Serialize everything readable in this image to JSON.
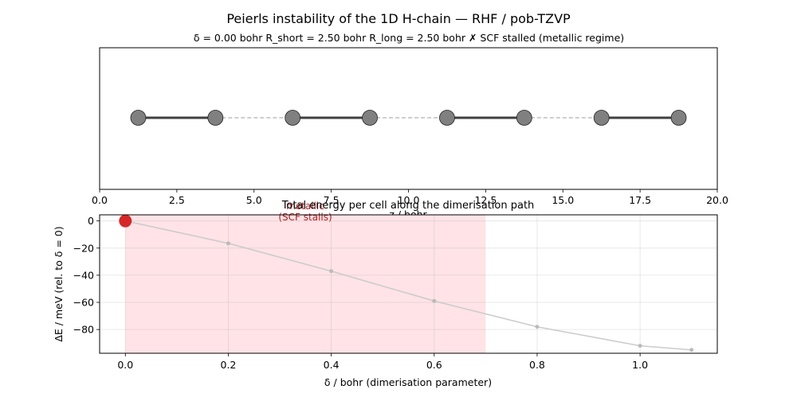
{
  "figure": {
    "title": "Peierls instability of the 1D H-chain — RHF / pob-TZVP",
    "status_line": "δ = 0.00 bohr   R_short = 2.50 bohr   R_long  = 2.50 bohr   ✗ SCF stalled (metallic regime)"
  },
  "chart_data": [
    {
      "type": "scatter",
      "panel": "chain-geometry",
      "xlabel": "z / bohr",
      "ylabel": "",
      "xlim": [
        0,
        20
      ],
      "xticks": [
        "0.0",
        "2.5",
        "5.0",
        "7.5",
        "10.0",
        "12.5",
        "15.0",
        "17.5",
        "20.0"
      ],
      "atoms_z": [
        1.25,
        3.75,
        6.25,
        8.75,
        11.25,
        13.75,
        16.25,
        18.75
      ],
      "short_bonds": [
        [
          1.25,
          3.75
        ],
        [
          6.25,
          8.75
        ],
        [
          11.25,
          13.75
        ],
        [
          16.25,
          18.75
        ]
      ],
      "long_bonds": [
        [
          3.75,
          6.25
        ],
        [
          8.75,
          11.25
        ],
        [
          13.75,
          16.25
        ]
      ],
      "colors": {
        "atom": "#808080",
        "short_bond": "#404040",
        "long_bond": "#b0b0b0"
      },
      "grid": false
    },
    {
      "type": "line",
      "panel": "energy-path",
      "title": "Total energy per cell along the dimerisation path",
      "xlabel": "δ / bohr  (dimerisation parameter)",
      "ylabel": "ΔE / meV  (rel. to δ = 0)",
      "xlim": [
        -0.05,
        1.15
      ],
      "ylim": [
        -97.5,
        4.5
      ],
      "xticks": [
        "0.0",
        "0.2",
        "0.4",
        "0.6",
        "0.8",
        "1.0"
      ],
      "xtick_values": [
        0,
        0.2,
        0.4,
        0.6,
        0.8,
        1.0
      ],
      "yticks": [
        "0",
        "−20",
        "−40",
        "−60",
        "−80"
      ],
      "ytick_values": [
        0,
        -20,
        -40,
        -60,
        -80
      ],
      "x": [
        0.0,
        0.2,
        0.4,
        0.6,
        0.8,
        1.0,
        1.1
      ],
      "y": [
        0.0,
        -16.5,
        -37.0,
        -59.0,
        -78.0,
        -92.0,
        -95.0
      ],
      "shaded_region": {
        "x_range": [
          0.0,
          0.7
        ],
        "color": "#ffe3e6",
        "label": "metallic\n(SCF stalls)"
      },
      "current_point": {
        "x": 0.0,
        "y": 0.0,
        "color": "#d62728"
      },
      "grid": true,
      "colors": {
        "line": "#cccccc",
        "annotation": "#b22222"
      }
    }
  ]
}
